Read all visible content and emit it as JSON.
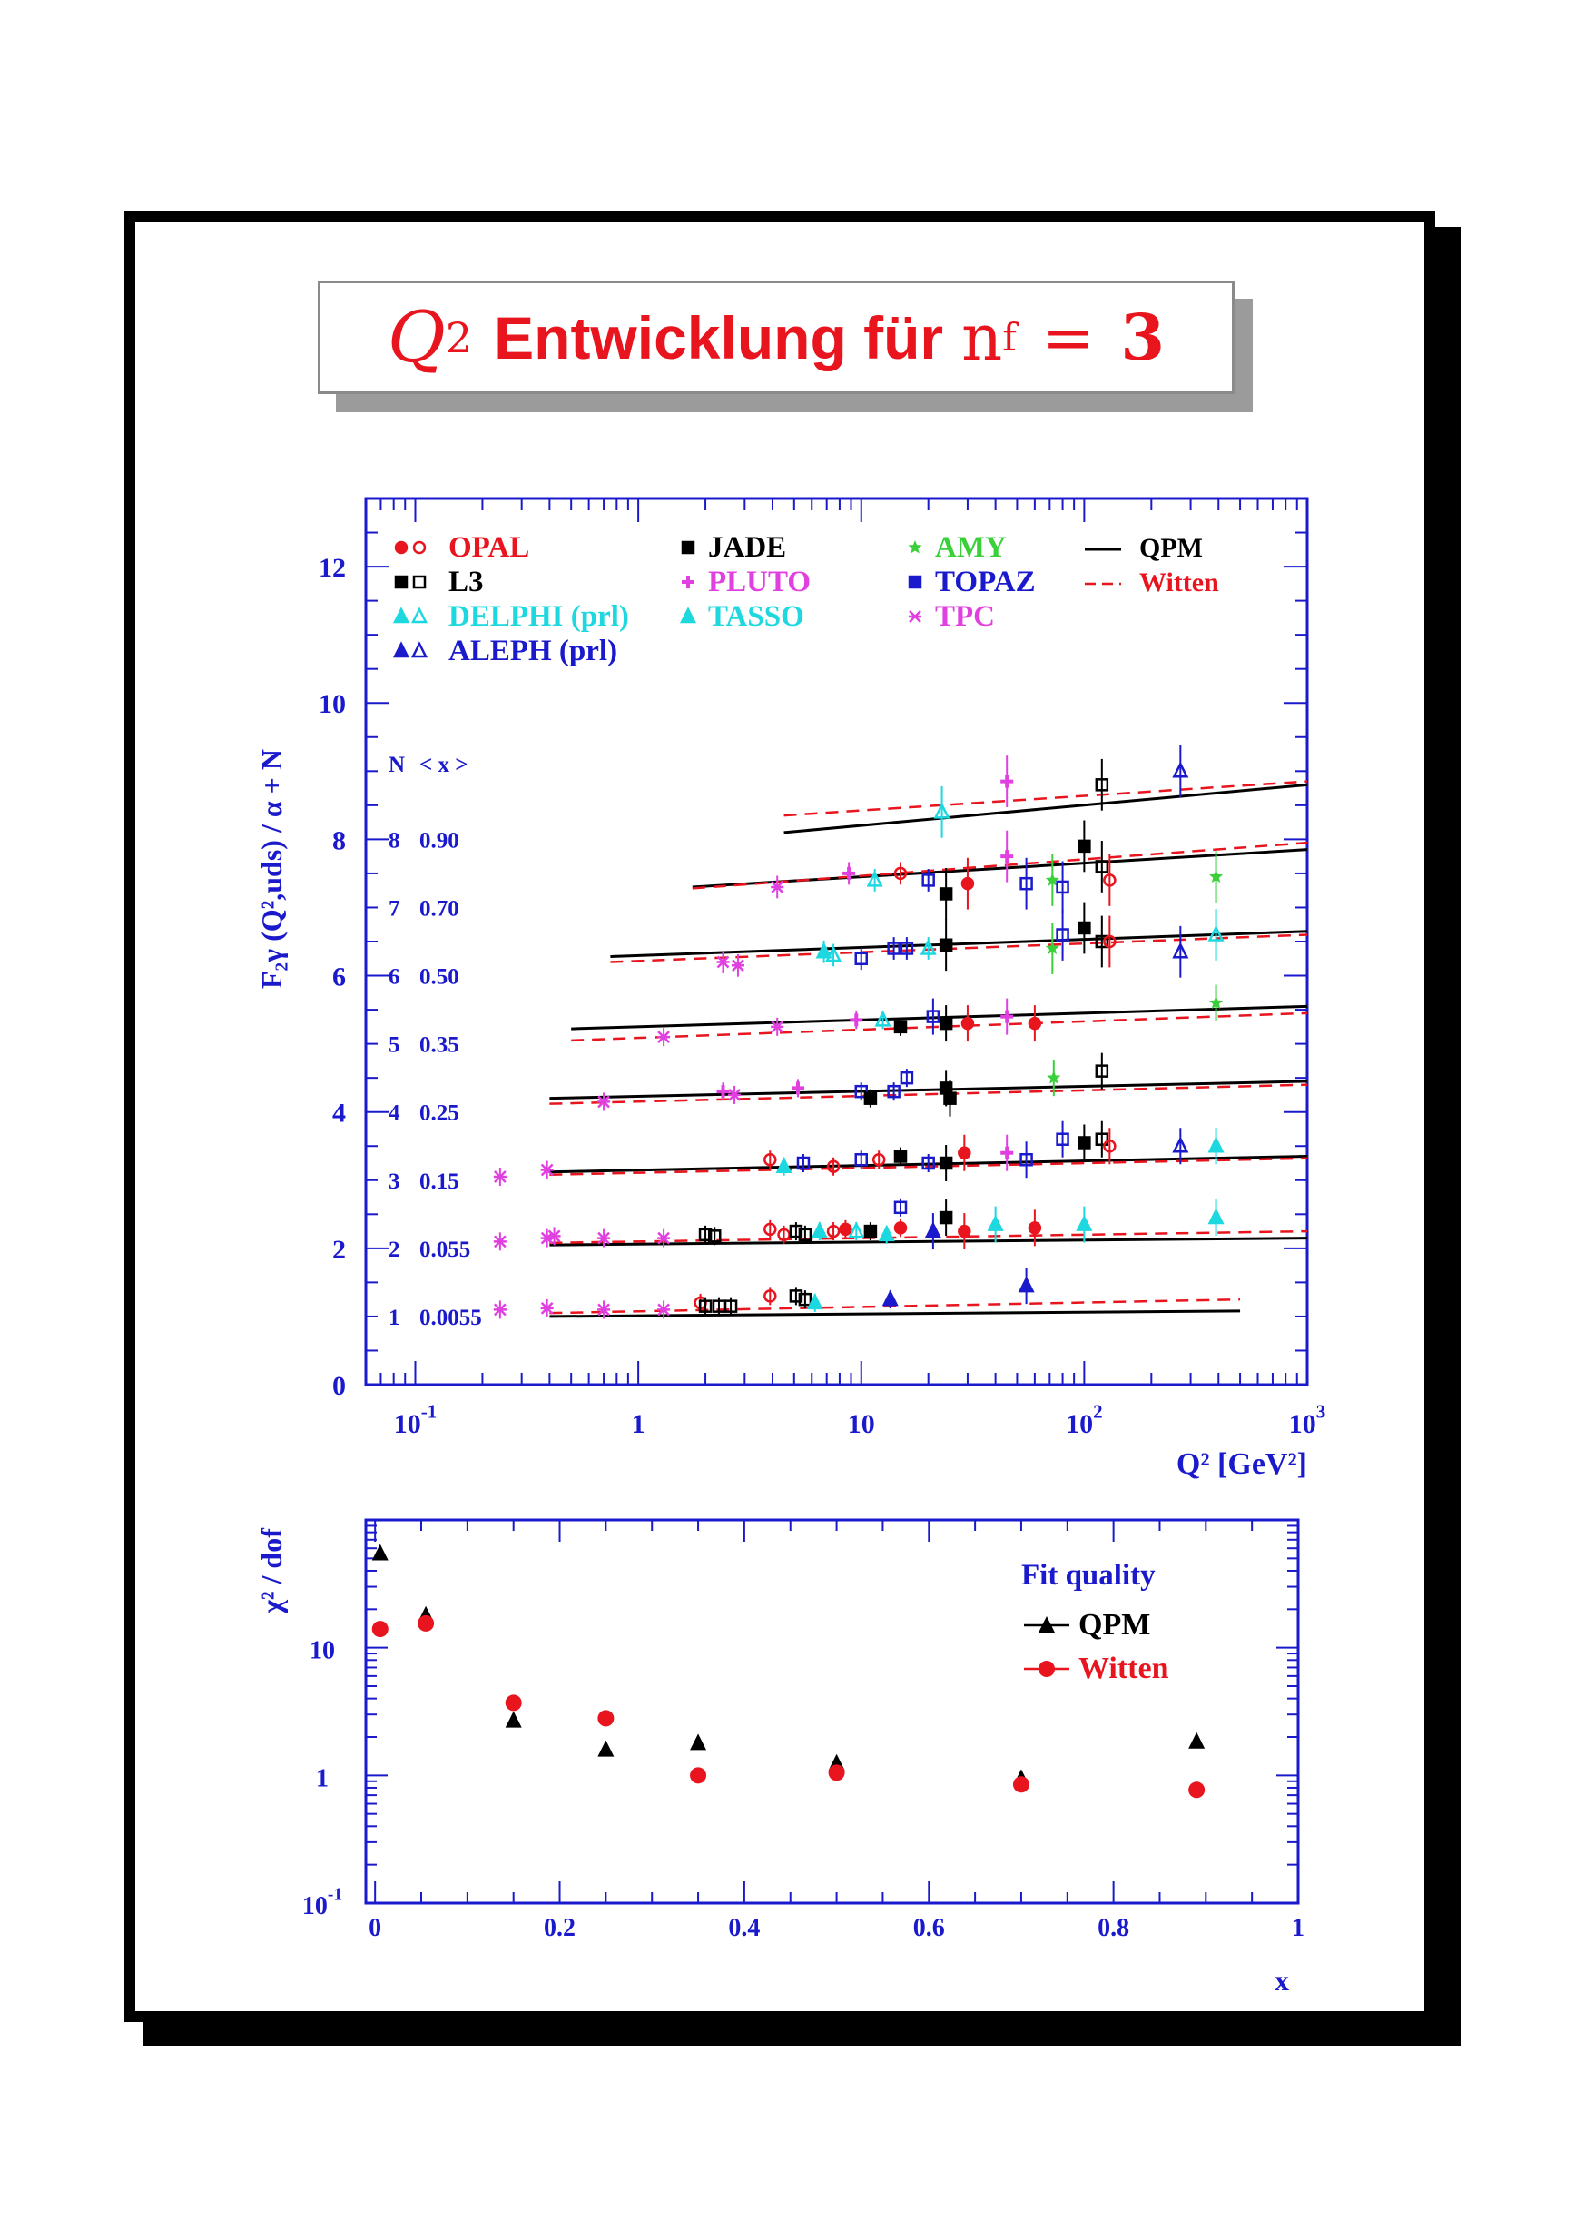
{
  "title": {
    "q": "Q",
    "q_sup": "2",
    "word": "Entwicklung für",
    "nf": "n",
    "nf_sub": "f",
    "eq": "=",
    "num": "3"
  },
  "colors": {
    "axis": "#1a1acc",
    "red": "#e8141e",
    "black": "#000000",
    "cyan": "#1ed8e0",
    "blue": "#1a1acc",
    "magenta": "#e040e0",
    "green": "#3ad03a"
  },
  "chart_data": [
    {
      "type": "scatter",
      "ylabel": "F₂γ (Q²,uds) / α + N",
      "xlabel": "Q² [GeV²]",
      "xscale": "log",
      "xlim": [
        0.06,
        1000
      ],
      "ylim": [
        0,
        13
      ],
      "x_ticks": [
        {
          "v": 0.1,
          "base": "10",
          "exp": "-1"
        },
        {
          "v": 1,
          "base": "1",
          "exp": ""
        },
        {
          "v": 10,
          "base": "10",
          "exp": ""
        },
        {
          "v": 100,
          "base": "10",
          "exp": "2"
        },
        {
          "v": 1000,
          "base": "10",
          "exp": "3"
        }
      ],
      "y_ticks": [
        0,
        2,
        4,
        6,
        8,
        10,
        12
      ],
      "legend_entries": [
        {
          "label": "OPAL",
          "color": "#e8141e",
          "col": 0,
          "row": 0
        },
        {
          "label": "L3",
          "color": "#000000",
          "col": 0,
          "row": 1
        },
        {
          "label": "DELPHI (prl)",
          "color": "#1ed8e0",
          "col": 0,
          "row": 2
        },
        {
          "label": "ALEPH (prl)",
          "color": "#1a1acc",
          "col": 0,
          "row": 3
        },
        {
          "label": "JADE",
          "color": "#000000",
          "col": 1,
          "row": 0
        },
        {
          "label": "PLUTO",
          "color": "#e040e0",
          "col": 1,
          "row": 1
        },
        {
          "label": "TASSO",
          "color": "#1ed8e0",
          "col": 1,
          "row": 2
        },
        {
          "label": "AMY",
          "color": "#3ad03a",
          "col": 2,
          "row": 0
        },
        {
          "label": "TOPAZ",
          "color": "#1a1acc",
          "col": 2,
          "row": 1
        },
        {
          "label": "TPC",
          "color": "#e040e0",
          "col": 2,
          "row": 2
        },
        {
          "label": "QPM",
          "color": "#000000",
          "col": 3,
          "row": 0
        },
        {
          "label": "Witten",
          "color": "#e8141e",
          "col": 3,
          "row": 1
        }
      ],
      "bins_header": {
        "n": "N",
        "x": "< x >"
      },
      "bins": [
        {
          "n": "1",
          "x": "0.0055",
          "N": 1,
          "qpm": [
            1.0,
            1.08
          ],
          "witten": [
            1.05,
            1.25
          ],
          "qrange": [
            0.4,
            500
          ]
        },
        {
          "n": "2",
          "x": "0.055",
          "N": 2,
          "qpm": [
            2.05,
            2.15
          ],
          "witten": [
            2.08,
            2.25
          ],
          "qrange": [
            0.4,
            1000
          ]
        },
        {
          "n": "3",
          "x": "0.15",
          "N": 3,
          "qpm": [
            3.12,
            3.35
          ],
          "witten": [
            3.08,
            3.32
          ],
          "qrange": [
            0.4,
            1000
          ]
        },
        {
          "n": "4",
          "x": "0.25",
          "N": 4,
          "qpm": [
            4.2,
            4.45
          ],
          "witten": [
            4.12,
            4.4
          ],
          "qrange": [
            0.4,
            1000
          ]
        },
        {
          "n": "5",
          "x": "0.35",
          "N": 5,
          "qpm": [
            5.22,
            5.55
          ],
          "witten": [
            5.05,
            5.45
          ],
          "qrange": [
            0.5,
            1000
          ]
        },
        {
          "n": "6",
          "x": "0.50",
          "N": 6,
          "qpm": [
            6.28,
            6.65
          ],
          "witten": [
            6.2,
            6.6
          ],
          "qrange": [
            0.75,
            1000
          ]
        },
        {
          "n": "7",
          "x": "0.70",
          "N": 7,
          "qpm": [
            7.3,
            7.85
          ],
          "witten": [
            7.28,
            7.95
          ],
          "qrange": [
            1.75,
            1000
          ]
        },
        {
          "n": "8",
          "x": "0.90",
          "N": 8,
          "qpm": [
            8.1,
            8.8
          ],
          "witten": [
            8.35,
            8.85
          ],
          "qrange": [
            4.5,
            1000
          ]
        }
      ],
      "points": [
        {
          "e": "TPC",
          "x": 0.24,
          "y": 1.1
        },
        {
          "e": "TPC",
          "x": 0.39,
          "y": 1.12
        },
        {
          "e": "TPC",
          "x": 0.7,
          "y": 1.1
        },
        {
          "e": "TPC",
          "x": 1.3,
          "y": 1.1
        },
        {
          "e": "OPAL",
          "x": 1.9,
          "y": 1.2,
          "o": 1
        },
        {
          "e": "L3",
          "x": 2.0,
          "y": 1.15,
          "o": 1
        },
        {
          "e": "L3",
          "x": 2.3,
          "y": 1.15,
          "o": 1
        },
        {
          "e": "L3",
          "x": 2.6,
          "y": 1.15,
          "o": 1
        },
        {
          "e": "OPAL",
          "x": 3.9,
          "y": 1.3,
          "o": 1
        },
        {
          "e": "L3",
          "x": 5.1,
          "y": 1.3,
          "o": 1
        },
        {
          "e": "L3",
          "x": 5.6,
          "y": 1.25,
          "o": 1
        },
        {
          "e": "DELPHI",
          "x": 6.2,
          "y": 1.2
        },
        {
          "e": "ALEPH",
          "x": 13.5,
          "y": 1.25
        },
        {
          "e": "ALEPH",
          "x": 55,
          "y": 1.45
        },
        {
          "e": "TPC",
          "x": 0.24,
          "y": 2.1
        },
        {
          "e": "TPC",
          "x": 0.39,
          "y": 2.15
        },
        {
          "e": "TPC",
          "x": 0.42,
          "y": 2.18
        },
        {
          "e": "TPC",
          "x": 0.7,
          "y": 2.15
        },
        {
          "e": "TPC",
          "x": 1.3,
          "y": 2.15
        },
        {
          "e": "L3",
          "x": 2.0,
          "y": 2.2,
          "o": 1
        },
        {
          "e": "L3",
          "x": 2.2,
          "y": 2.18,
          "o": 1
        },
        {
          "e": "OPAL",
          "x": 3.9,
          "y": 2.28,
          "o": 1
        },
        {
          "e": "OPAL",
          "x": 4.5,
          "y": 2.2,
          "o": 1
        },
        {
          "e": "L3",
          "x": 5.1,
          "y": 2.25,
          "o": 1
        },
        {
          "e": "L3",
          "x": 5.6,
          "y": 2.2,
          "o": 1
        },
        {
          "e": "DELPHI",
          "x": 6.5,
          "y": 2.25
        },
        {
          "e": "OPAL",
          "x": 7.5,
          "y": 2.25,
          "o": 1
        },
        {
          "e": "OPAL",
          "x": 8.5,
          "y": 2.28
        },
        {
          "e": "TASSO",
          "x": 9.5,
          "y": 2.25,
          "o": 1
        },
        {
          "e": "JADE",
          "x": 11,
          "y": 2.25
        },
        {
          "e": "DELPHI",
          "x": 13,
          "y": 2.2
        },
        {
          "e": "OPAL",
          "x": 15,
          "y": 2.3
        },
        {
          "e": "TOPAZ",
          "x": 15,
          "y": 2.6,
          "o": 1
        },
        {
          "e": "ALEPH",
          "x": 21,
          "y": 2.25
        },
        {
          "e": "JADE",
          "x": 24,
          "y": 2.45
        },
        {
          "e": "OPAL",
          "x": 29,
          "y": 2.25
        },
        {
          "e": "DELPHI",
          "x": 40,
          "y": 2.35
        },
        {
          "e": "OPAL",
          "x": 60,
          "y": 2.3
        },
        {
          "e": "DELPHI",
          "x": 100,
          "y": 2.35
        },
        {
          "e": "DELPHI",
          "x": 390,
          "y": 2.45
        },
        {
          "e": "TPC",
          "x": 0.24,
          "y": 3.05
        },
        {
          "e": "TPC",
          "x": 0.39,
          "y": 3.15
        },
        {
          "e": "OPAL",
          "x": 3.9,
          "y": 3.3,
          "o": 1
        },
        {
          "e": "TASSO",
          "x": 4.5,
          "y": 3.2
        },
        {
          "e": "TOPAZ",
          "x": 5.5,
          "y": 3.25,
          "o": 1
        },
        {
          "e": "OPAL",
          "x": 7.5,
          "y": 3.2,
          "o": 1
        },
        {
          "e": "TOPAZ",
          "x": 10,
          "y": 3.3,
          "o": 1
        },
        {
          "e": "OPAL",
          "x": 12,
          "y": 3.3,
          "o": 1
        },
        {
          "e": "JADE",
          "x": 15,
          "y": 3.35
        },
        {
          "e": "TOPAZ",
          "x": 20,
          "y": 3.25,
          "o": 1
        },
        {
          "e": "JADE",
          "x": 24,
          "y": 3.25
        },
        {
          "e": "OPAL",
          "x": 29,
          "y": 3.4
        },
        {
          "e": "PLUTO",
          "x": 45,
          "y": 3.4,
          "o": 1
        },
        {
          "e": "TOPAZ",
          "x": 55,
          "y": 3.3,
          "o": 1
        },
        {
          "e": "TOPAZ",
          "x": 80,
          "y": 3.6,
          "o": 1
        },
        {
          "e": "JADE",
          "x": 100,
          "y": 3.55
        },
        {
          "e": "L3",
          "x": 120,
          "y": 3.6,
          "o": 1
        },
        {
          "e": "OPAL",
          "x": 130,
          "y": 3.5,
          "o": 1
        },
        {
          "e": "ALEPH",
          "x": 270,
          "y": 3.5,
          "o": 1
        },
        {
          "e": "DELPHI",
          "x": 390,
          "y": 3.5
        },
        {
          "e": "TPC",
          "x": 0.7,
          "y": 4.15
        },
        {
          "e": "PLUTO",
          "x": 2.4,
          "y": 4.3,
          "o": 1
        },
        {
          "e": "TPC",
          "x": 2.7,
          "y": 4.25
        },
        {
          "e": "PLUTO",
          "x": 5.2,
          "y": 4.35,
          "o": 1
        },
        {
          "e": "TOPAZ",
          "x": 10,
          "y": 4.3,
          "o": 1
        },
        {
          "e": "JADE",
          "x": 11,
          "y": 4.2
        },
        {
          "e": "TOPAZ",
          "x": 14,
          "y": 4.3,
          "o": 1
        },
        {
          "e": "TOPAZ",
          "x": 16,
          "y": 4.5,
          "o": 1
        },
        {
          "e": "JADE",
          "x": 24,
          "y": 4.35
        },
        {
          "e": "JADE",
          "x": 25,
          "y": 4.2
        },
        {
          "e": "AMY",
          "x": 73,
          "y": 4.5
        },
        {
          "e": "L3",
          "x": 120,
          "y": 4.6,
          "o": 1
        },
        {
          "e": "TPC",
          "x": 1.3,
          "y": 5.1
        },
        {
          "e": "TPC",
          "x": 4.2,
          "y": 5.25
        },
        {
          "e": "PLUTO",
          "x": 9.5,
          "y": 5.35,
          "o": 1
        },
        {
          "e": "TASSO",
          "x": 12.5,
          "y": 5.35,
          "o": 1
        },
        {
          "e": "JADE",
          "x": 15,
          "y": 5.25
        },
        {
          "e": "TOPAZ",
          "x": 21,
          "y": 5.4,
          "o": 1
        },
        {
          "e": "JADE",
          "x": 24,
          "y": 5.3
        },
        {
          "e": "OPAL",
          "x": 30,
          "y": 5.3
        },
        {
          "e": "PLUTO",
          "x": 45,
          "y": 5.4,
          "o": 1
        },
        {
          "e": "OPAL",
          "x": 60,
          "y": 5.3
        },
        {
          "e": "AMY",
          "x": 390,
          "y": 5.6
        },
        {
          "e": "TPC",
          "x": 2.4,
          "y": 6.2
        },
        {
          "e": "TPC",
          "x": 2.8,
          "y": 6.15
        },
        {
          "e": "DELPHI",
          "x": 6.8,
          "y": 6.35
        },
        {
          "e": "TASSO",
          "x": 7.5,
          "y": 6.3,
          "o": 1
        },
        {
          "e": "TOPAZ",
          "x": 10,
          "y": 6.25,
          "o": 1
        },
        {
          "e": "TOPAZ",
          "x": 14,
          "y": 6.4,
          "o": 1
        },
        {
          "e": "TOPAZ",
          "x": 16,
          "y": 6.4,
          "o": 1
        },
        {
          "e": "TASSO",
          "x": 20,
          "y": 6.4,
          "o": 1
        },
        {
          "e": "JADE",
          "x": 24,
          "y": 6.45
        },
        {
          "e": "AMY",
          "x": 72,
          "y": 6.4
        },
        {
          "e": "TOPAZ",
          "x": 80,
          "y": 6.6,
          "o": 1
        },
        {
          "e": "JADE",
          "x": 100,
          "y": 6.7
        },
        {
          "e": "L3",
          "x": 120,
          "y": 6.5,
          "o": 1
        },
        {
          "e": "OPAL",
          "x": 130,
          "y": 6.5,
          "o": 1
        },
        {
          "e": "ALEPH",
          "x": 270,
          "y": 6.35,
          "o": 1
        },
        {
          "e": "DELPHI",
          "x": 390,
          "y": 6.6,
          "o": 1
        },
        {
          "e": "TPC",
          "x": 4.2,
          "y": 7.3
        },
        {
          "e": "PLUTO",
          "x": 8.8,
          "y": 7.5,
          "o": 1
        },
        {
          "e": "TASSO",
          "x": 11.5,
          "y": 7.4,
          "o": 1
        },
        {
          "e": "OPAL",
          "x": 15,
          "y": 7.5,
          "o": 1
        },
        {
          "e": "TOPAZ",
          "x": 20,
          "y": 7.4,
          "o": 1
        },
        {
          "e": "JADE",
          "x": 24,
          "y": 7.2
        },
        {
          "e": "OPAL",
          "x": 30,
          "y": 7.35
        },
        {
          "e": "PLUTO",
          "x": 45,
          "y": 7.75,
          "o": 1
        },
        {
          "e": "TOPAZ",
          "x": 55,
          "y": 7.35,
          "o": 1
        },
        {
          "e": "AMY",
          "x": 72,
          "y": 7.4
        },
        {
          "e": "TOPAZ",
          "x": 80,
          "y": 7.3,
          "o": 1
        },
        {
          "e": "JADE",
          "x": 100,
          "y": 7.9
        },
        {
          "e": "L3",
          "x": 120,
          "y": 7.6,
          "o": 1
        },
        {
          "e": "OPAL",
          "x": 130,
          "y": 7.4,
          "o": 1
        },
        {
          "e": "AMY",
          "x": 390,
          "y": 7.45
        },
        {
          "e": "TASSO",
          "x": 23,
          "y": 8.4,
          "o": 1
        },
        {
          "e": "PLUTO",
          "x": 45,
          "y": 8.85,
          "o": 1
        },
        {
          "e": "L3",
          "x": 120,
          "y": 8.8,
          "o": 1
        },
        {
          "e": "ALEPH",
          "x": 270,
          "y": 9.0,
          "o": 1
        }
      ]
    },
    {
      "type": "scatter",
      "ylabel": "χ² / dof",
      "xlabel": "x",
      "yscale": "log",
      "xlim": [
        -0.01,
        1
      ],
      "ylim": [
        0.1,
        100
      ],
      "x_ticks": [
        "0",
        "0.2",
        "0.4",
        "0.6",
        "0.8",
        "1"
      ],
      "y_ticks": [
        {
          "v": 10,
          "base": "10",
          "exp": ""
        },
        {
          "v": 1,
          "base": "1",
          "exp": ""
        },
        {
          "v": 0.1,
          "base": "10",
          "exp": "-1"
        }
      ],
      "legend_title": "Fit quality",
      "series": [
        {
          "name": "QPM",
          "marker": "triangle",
          "color": "#000000",
          "x": [
            0.0055,
            0.055,
            0.15,
            0.25,
            0.35,
            0.5,
            0.7,
            0.89
          ],
          "y": [
            55,
            18,
            2.7,
            1.6,
            1.8,
            1.25,
            0.95,
            1.85
          ]
        },
        {
          "name": "Witten",
          "marker": "circle",
          "color": "#e8141e",
          "x": [
            0.0055,
            0.055,
            0.15,
            0.25,
            0.35,
            0.5,
            0.7,
            0.89
          ],
          "y": [
            14,
            15.5,
            3.7,
            2.8,
            1.0,
            1.05,
            0.85,
            0.77
          ]
        }
      ]
    }
  ]
}
